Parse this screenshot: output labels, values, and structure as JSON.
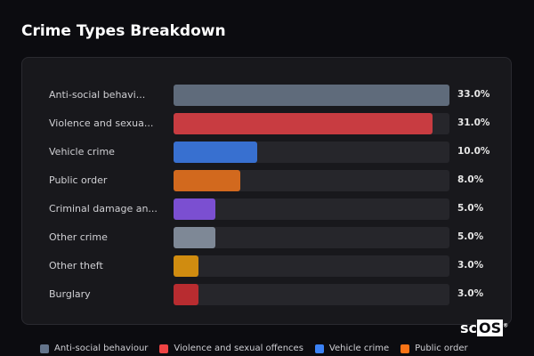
{
  "title": "Crime Types Breakdown",
  "logo": {
    "prefix": "sc",
    "boxed": "OS"
  },
  "chart_data": {
    "type": "bar",
    "orientation": "horizontal",
    "title": "Crime Types Breakdown",
    "categories": [
      "Anti-social behavi...",
      "Violence and sexua...",
      "Vehicle crime",
      "Public order",
      "Criminal damage an...",
      "Other crime",
      "Other theft",
      "Burglary"
    ],
    "values": [
      33.0,
      31.0,
      10.0,
      8.0,
      5.0,
      5.0,
      3.0,
      3.0
    ],
    "value_labels": [
      "33.0%",
      "31.0%",
      "10.0%",
      "8.0%",
      "5.0%",
      "5.0%",
      "3.0%",
      "3.0%"
    ],
    "colors": [
      "#5f6b7b",
      "#c83c41",
      "#3870d0",
      "#d2691e",
      "#7b4fd1",
      "#7e8896",
      "#d08c10",
      "#b82c30"
    ],
    "xlim": [
      0,
      33
    ],
    "grid": false,
    "legend_placement": "bottom",
    "legend": [
      {
        "name": "Anti-social behaviour",
        "color": "#64748b"
      },
      {
        "name": "Violence and sexual offences",
        "color": "#ef4444"
      },
      {
        "name": "Vehicle crime",
        "color": "#3b82f6"
      },
      {
        "name": "Public order",
        "color": "#f97316"
      }
    ]
  }
}
